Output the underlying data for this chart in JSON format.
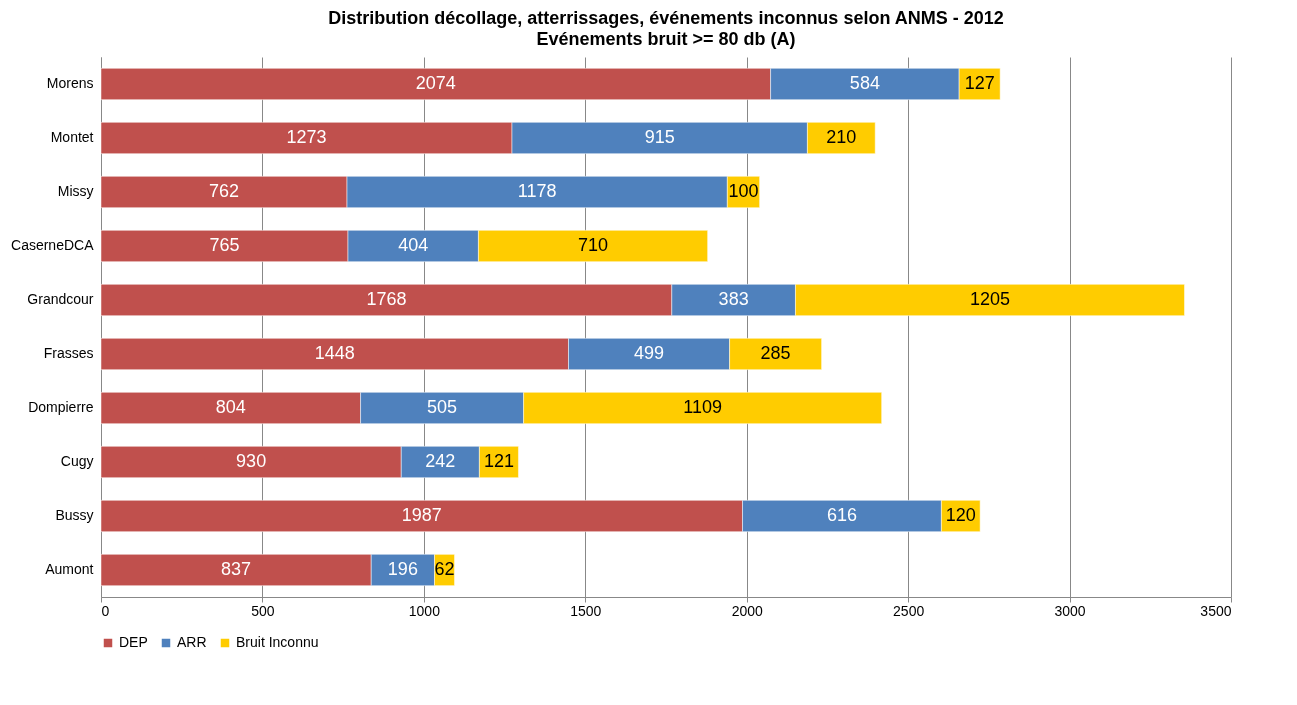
{
  "chart_data": {
    "type": "bar",
    "orientation": "horizontal",
    "stacked": true,
    "title": "Distribution décollage, atterrissages, événements inconnus selon ANMS - 2012",
    "subtitle": "Evénements bruit >= 80 db (A)",
    "categories": [
      "Morens",
      "Montet",
      "Missy",
      "CaserneDCA",
      "Grandcour",
      "Frasses",
      "Dompierre",
      "Cugy",
      "Bussy",
      "Aumont"
    ],
    "series": [
      {
        "name": "DEP",
        "color": "#c0504d",
        "values": [
          2074,
          1273,
          762,
          765,
          1768,
          1448,
          804,
          930,
          1987,
          837
        ]
      },
      {
        "name": "ARR",
        "color": "#4f81bd",
        "values": [
          584,
          915,
          1178,
          404,
          383,
          499,
          505,
          242,
          616,
          196
        ]
      },
      {
        "name": "Bruit Inconnu",
        "color": "#ffcc00",
        "values": [
          127,
          210,
          100,
          710,
          1205,
          285,
          1109,
          121,
          120,
          62
        ]
      }
    ],
    "xlim": [
      0,
      3500
    ],
    "xticks": [
      0,
      500,
      1000,
      1500,
      2000,
      2500,
      3000,
      3500
    ],
    "grid": "x",
    "legend": "bottom",
    "data_labels": true
  }
}
